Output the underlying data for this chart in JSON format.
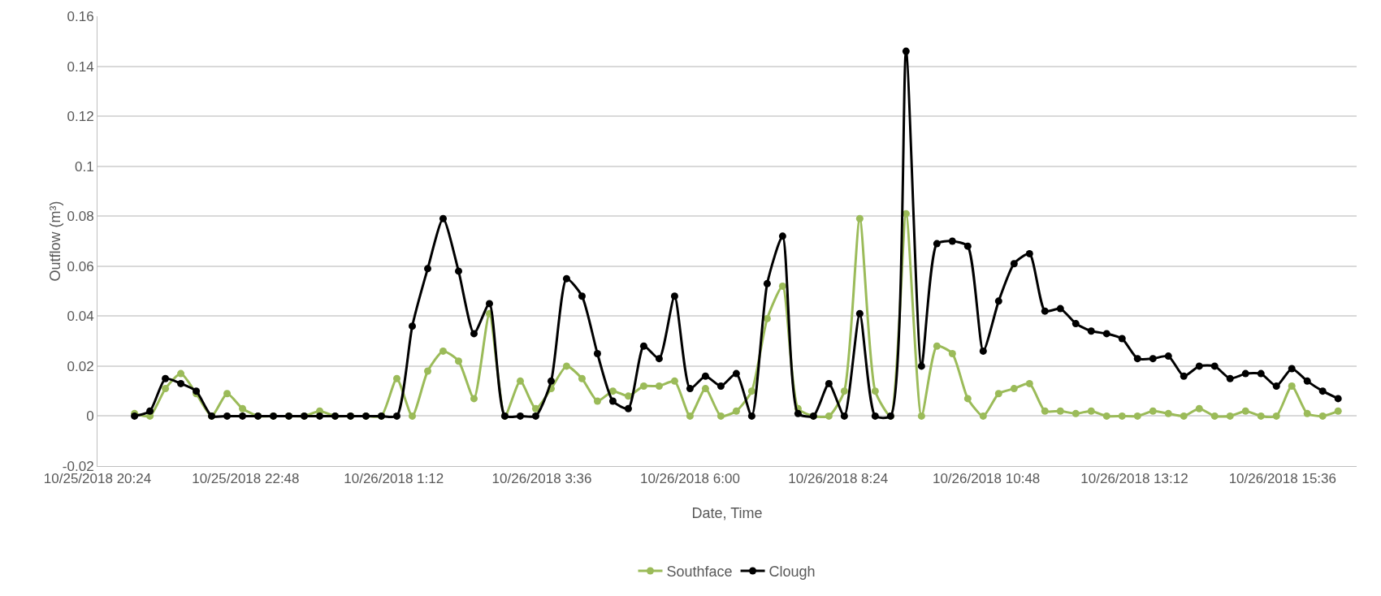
{
  "chart_data": {
    "type": "line",
    "xlabel": "Date, Time",
    "ylabel": "Outflow (m³)",
    "x": [
      "2018-10-25T21:00",
      "2018-10-25T21:15",
      "2018-10-25T21:30",
      "2018-10-25T21:45",
      "2018-10-25T22:00",
      "2018-10-25T22:15",
      "2018-10-25T22:30",
      "2018-10-25T22:45",
      "2018-10-25T23:00",
      "2018-10-25T23:15",
      "2018-10-25T23:30",
      "2018-10-25T23:45",
      "2018-10-26T00:00",
      "2018-10-26T00:15",
      "2018-10-26T00:30",
      "2018-10-26T00:45",
      "2018-10-26T01:00",
      "2018-10-26T01:15",
      "2018-10-26T01:30",
      "2018-10-26T01:45",
      "2018-10-26T02:00",
      "2018-10-26T02:15",
      "2018-10-26T02:30",
      "2018-10-26T02:45",
      "2018-10-26T03:00",
      "2018-10-26T03:15",
      "2018-10-26T03:30",
      "2018-10-26T03:45",
      "2018-10-26T04:00",
      "2018-10-26T04:15",
      "2018-10-26T04:30",
      "2018-10-26T04:45",
      "2018-10-26T05:00",
      "2018-10-26T05:15",
      "2018-10-26T05:30",
      "2018-10-26T05:45",
      "2018-10-26T06:00",
      "2018-10-26T06:15",
      "2018-10-26T06:30",
      "2018-10-26T06:45",
      "2018-10-26T07:00",
      "2018-10-26T07:15",
      "2018-10-26T07:30",
      "2018-10-26T07:45",
      "2018-10-26T08:00",
      "2018-10-26T08:15",
      "2018-10-26T08:30",
      "2018-10-26T08:45",
      "2018-10-26T09:00",
      "2018-10-26T09:15",
      "2018-10-26T09:30",
      "2018-10-26T09:45",
      "2018-10-26T10:00",
      "2018-10-26T10:15",
      "2018-10-26T10:30",
      "2018-10-26T10:45",
      "2018-10-26T11:00",
      "2018-10-26T11:15",
      "2018-10-26T11:30",
      "2018-10-26T11:45",
      "2018-10-26T12:00",
      "2018-10-26T12:15",
      "2018-10-26T12:30",
      "2018-10-26T12:45",
      "2018-10-26T13:00",
      "2018-10-26T13:15",
      "2018-10-26T13:30",
      "2018-10-26T13:45",
      "2018-10-26T14:00",
      "2018-10-26T14:15",
      "2018-10-26T14:30",
      "2018-10-26T14:45",
      "2018-10-26T15:00",
      "2018-10-26T15:15",
      "2018-10-26T15:30",
      "2018-10-26T15:45",
      "2018-10-26T16:00",
      "2018-10-26T16:15",
      "2018-10-26T16:30"
    ],
    "series": [
      {
        "name": "Southface",
        "color": "#9bbb59",
        "values": [
          0.001,
          0,
          0.011,
          0.017,
          0.009,
          0,
          0.009,
          0.003,
          0,
          0,
          0,
          0,
          0.002,
          0,
          0,
          0,
          0,
          0.015,
          0,
          0.018,
          0.026,
          0.022,
          0.007,
          0.041,
          0,
          0.014,
          0.003,
          0.011,
          0.02,
          0.015,
          0.006,
          0.01,
          0.008,
          0.012,
          0.012,
          0.014,
          0,
          0.011,
          0,
          0.002,
          0.01,
          0.039,
          0.052,
          0.003,
          0,
          0,
          0.01,
          0.079,
          0.01,
          0,
          0.081,
          0,
          0.028,
          0.025,
          0.007,
          0,
          0.009,
          0.011,
          0.013,
          0.002,
          0.002,
          0.001,
          0.002,
          0,
          0,
          0,
          0.002,
          0.001,
          0,
          0.003,
          0,
          0,
          0.002,
          0,
          0,
          0.012,
          0.001,
          0,
          0.002
        ]
      },
      {
        "name": "Clough",
        "color": "#000000",
        "values": [
          0,
          0.002,
          0.015,
          0.013,
          0.01,
          0,
          0,
          0,
          0,
          0,
          0,
          0,
          0,
          0,
          0,
          0,
          0,
          0,
          0.036,
          0.059,
          0.079,
          0.058,
          0.033,
          0.045,
          0,
          0,
          0,
          0.014,
          0.055,
          0.048,
          0.025,
          0.006,
          0.003,
          0.028,
          0.023,
          0.048,
          0.011,
          0.016,
          0.012,
          0.017,
          0,
          0.053,
          0.072,
          0.001,
          0,
          0.013,
          0,
          0.041,
          0,
          0,
          0.146,
          0.02,
          0.069,
          0.07,
          0.068,
          0.026,
          0.046,
          0.061,
          0.065,
          0.042,
          0.043,
          0.037,
          0.034,
          0.033,
          0.031,
          0.023,
          0.023,
          0.024,
          0.016,
          0.02,
          0.02,
          0.015,
          0.017,
          0.017,
          0.012,
          0.019,
          0.014,
          0.01,
          0.007
        ]
      }
    ],
    "xlim": [
      "2018-10-25T20:24",
      "2018-10-26T16:48"
    ],
    "xticks": [
      {
        "value": "2018-10-25T20:24",
        "label": "10/25/2018 20:24"
      },
      {
        "value": "2018-10-25T22:48",
        "label": "10/25/2018 22:48"
      },
      {
        "value": "2018-10-26T01:12",
        "label": "10/26/2018 1:12"
      },
      {
        "value": "2018-10-26T03:36",
        "label": "10/26/2018 3:36"
      },
      {
        "value": "2018-10-26T06:00",
        "label": "10/26/2018 6:00"
      },
      {
        "value": "2018-10-26T08:24",
        "label": "10/26/2018 8:24"
      },
      {
        "value": "2018-10-26T10:48",
        "label": "10/26/2018 10:48"
      },
      {
        "value": "2018-10-26T13:12",
        "label": "10/26/2018 13:12"
      },
      {
        "value": "2018-10-26T15:36",
        "label": "10/26/2018 15:36"
      }
    ],
    "ylim": [
      -0.02,
      0.16
    ],
    "yticks": [
      -0.02,
      0,
      0.02,
      0.04,
      0.06,
      0.08,
      0.1,
      0.12,
      0.14,
      0.16
    ],
    "grid": "y",
    "legend": "bottom",
    "marker": "circle",
    "line_style": "solid"
  }
}
